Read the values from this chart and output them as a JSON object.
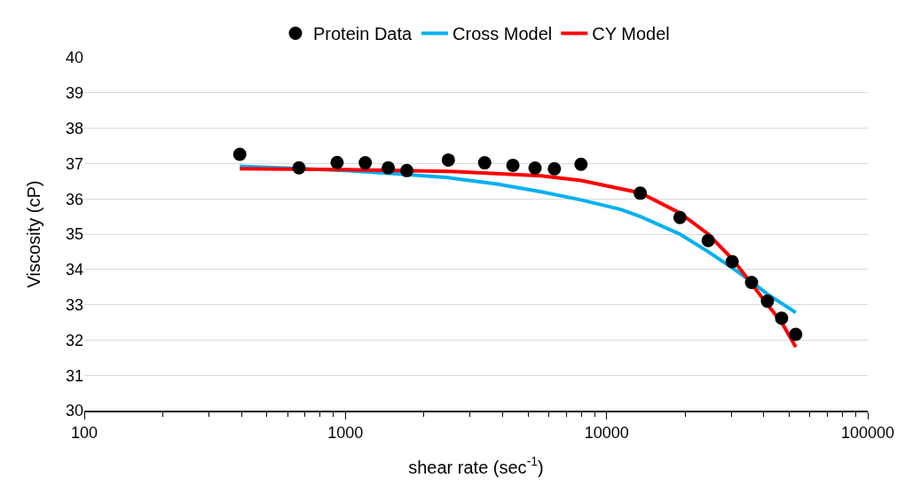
{
  "chart_data": {
    "type": "scatter",
    "xlabel": "shear rate (sec$^{-1}$)",
    "ylabel": "Viscosity (cP)",
    "log": "x",
    "xlim": [
      100,
      100000
    ],
    "xticks": [
      100,
      1000,
      10000,
      100000
    ],
    "ylim": [
      30,
      40
    ],
    "yticks": [
      30,
      31,
      32,
      33,
      34,
      35,
      36,
      37,
      38,
      39,
      40
    ],
    "grid": "y",
    "legend": "top",
    "series": [
      {
        "name": "Protein Data",
        "marker": "circle",
        "color": "#000000",
        "x": [
          394,
          664,
          929,
          1191,
          1459,
          1718,
          2478,
          3413,
          4378,
          5322,
          6310,
          7980,
          13460,
          19100,
          24500,
          30260,
          35900,
          41300,
          46800,
          53000
        ],
        "values": [
          37.26,
          36.88,
          37.03,
          37.02,
          36.88,
          36.8,
          37.1,
          37.02,
          36.95,
          36.87,
          36.85,
          36.98,
          36.16,
          35.47,
          34.82,
          34.22,
          33.63,
          33.1,
          32.62,
          32.16
        ]
      },
      {
        "name": "Cross Model",
        "type": "line",
        "marker": "none",
        "line_style": "solid",
        "color": "#00b0f0",
        "x": [
          394,
          1000,
          1616,
          2478,
          3804,
          5623,
          7980,
          11320,
          13460,
          19100,
          24500,
          30260,
          35900,
          41300,
          53000
        ],
        "values": [
          36.92,
          36.8,
          36.7,
          36.6,
          36.42,
          36.2,
          35.97,
          35.7,
          35.5,
          35.0,
          34.5,
          34.05,
          33.65,
          33.3,
          32.78
        ]
      },
      {
        "name": "CY Model",
        "type": "line",
        "marker": "none",
        "line_style": "solid",
        "color": "#ff0000",
        "x": [
          394,
          1000,
          2478,
          5623,
          7980,
          13460,
          19100,
          24500,
          30260,
          35900,
          41300,
          46800,
          53000
        ],
        "values": [
          36.85,
          36.83,
          36.78,
          36.65,
          36.52,
          36.17,
          35.6,
          35.0,
          34.3,
          33.6,
          33.0,
          32.5,
          31.8
        ]
      }
    ]
  }
}
